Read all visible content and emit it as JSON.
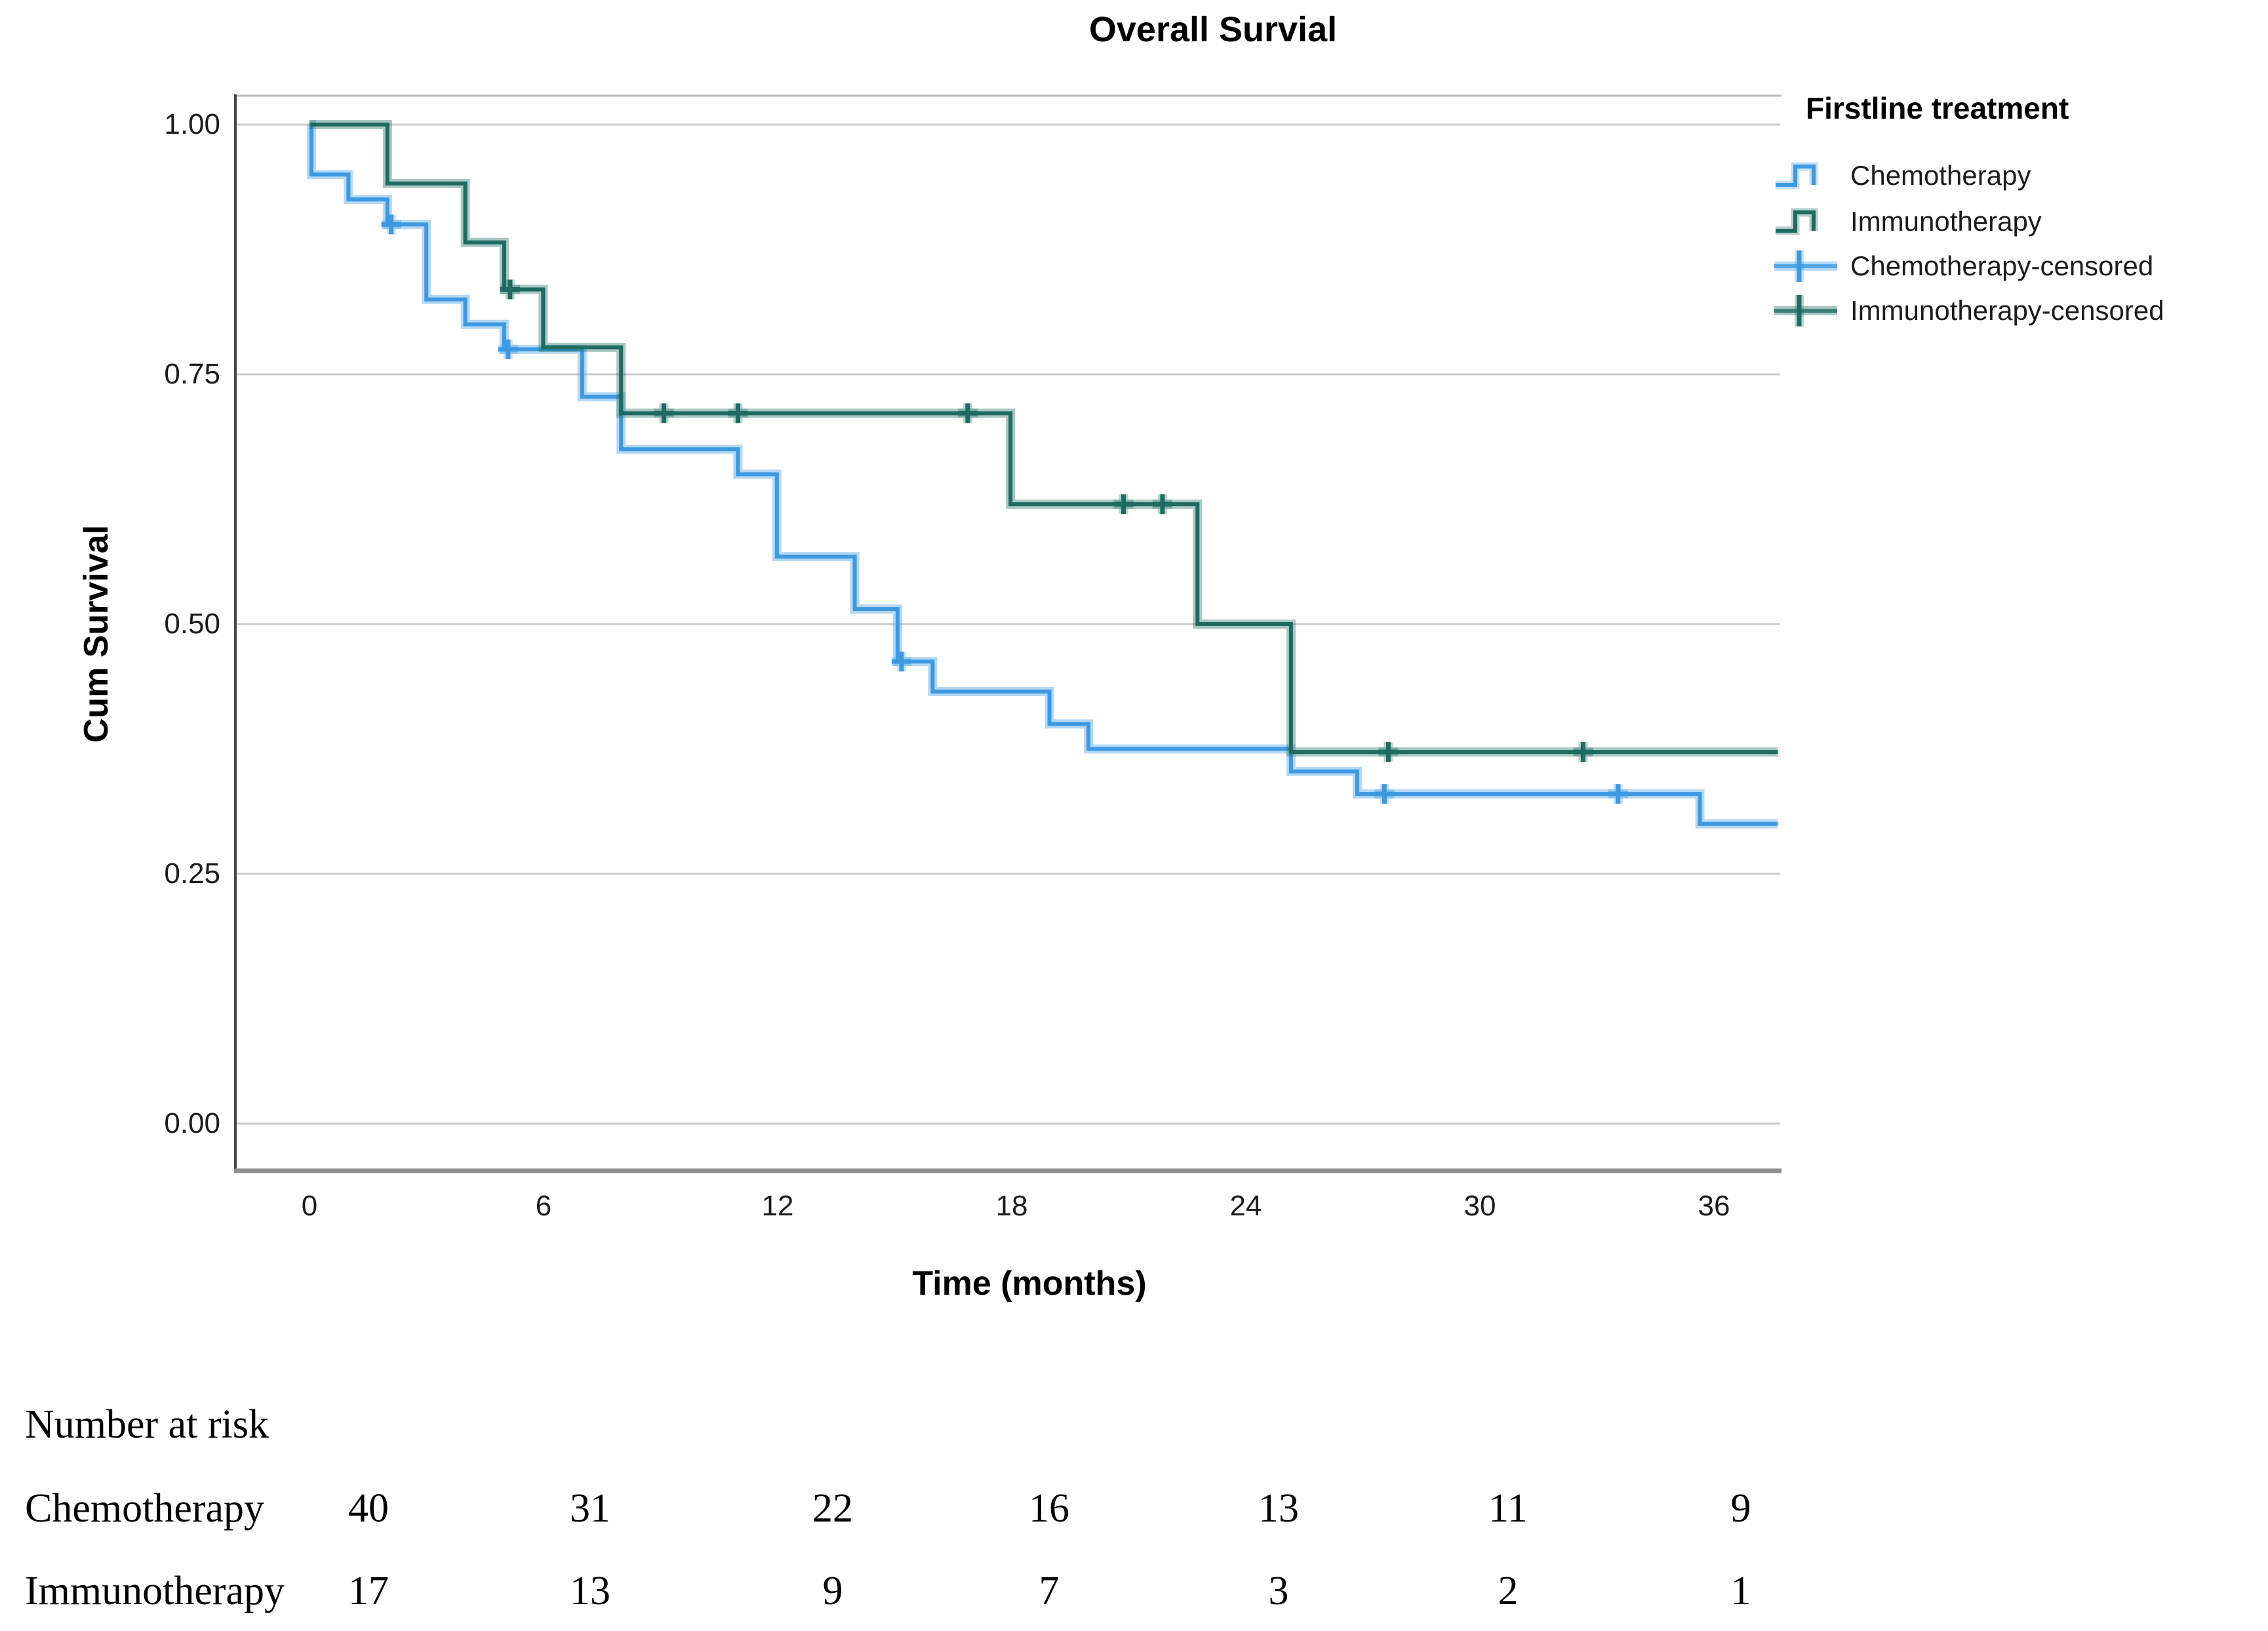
{
  "title": "Overall Survial",
  "axes": {
    "y": {
      "label": "Cum Survival",
      "ticks": [
        "1.00",
        "0.75",
        "0.50",
        "0.25",
        "0.00"
      ]
    },
    "x": {
      "label": "Time (months)",
      "ticks": [
        "0",
        "6",
        "12",
        "18",
        "24",
        "30",
        "36"
      ]
    }
  },
  "legend": {
    "title": "Firstline treatment",
    "entries": [
      {
        "label": "Chemotherapy",
        "color": "#3d9ae2",
        "type": "step-line"
      },
      {
        "label": "Immunotherapy",
        "color": "#1e6b62",
        "type": "step-line"
      },
      {
        "label": "Chemotherapy-censored",
        "color": "#3d9ae2",
        "type": "censored-marker"
      },
      {
        "label": "Immunotherapy-censored",
        "color": "#1e6b62",
        "type": "censored-marker"
      }
    ]
  },
  "chart_data": {
    "type": "line",
    "subtype": "kaplan-meier-step",
    "title": "Overall Survial",
    "xlabel": "Time (months)",
    "ylabel": "Cum Survival",
    "xlim": [
      0,
      37.7
    ],
    "ylim": [
      0,
      1.04
    ],
    "x_ticks": [
      0,
      6,
      12,
      18,
      24,
      30,
      36
    ],
    "y_ticks": [
      0.0,
      0.25,
      0.5,
      0.75,
      1.0
    ],
    "grid": "horizontal",
    "legend_position": "right",
    "series": [
      {
        "name": "Chemotherapy",
        "color": "#3d9ae2",
        "steps": [
          [
            0,
            1.0
          ],
          [
            0.05,
            0.95
          ],
          [
            1,
            0.925
          ],
          [
            2,
            0.9
          ],
          [
            3,
            0.825
          ],
          [
            4,
            0.8
          ],
          [
            5,
            0.775
          ],
          [
            7,
            0.7275
          ],
          [
            8,
            0.675
          ],
          [
            11,
            0.65
          ],
          [
            12,
            0.5675
          ],
          [
            14,
            0.515
          ],
          [
            15.1,
            0.4625
          ],
          [
            16,
            0.4325
          ],
          [
            19,
            0.4
          ],
          [
            20,
            0.375
          ],
          [
            25.2,
            0.3525
          ],
          [
            26.9,
            0.33
          ],
          [
            35.7,
            0.3
          ]
        ],
        "end": 37.7,
        "censored": [
          [
            2.1,
            0.9
          ],
          [
            5.1,
            0.775
          ],
          [
            15.2,
            0.4625
          ],
          [
            27.6,
            0.33
          ],
          [
            33.6,
            0.33
          ]
        ]
      },
      {
        "name": "Immunotherapy",
        "color": "#1e6b62",
        "steps": [
          [
            0,
            1.0
          ],
          [
            2,
            0.941
          ],
          [
            4,
            0.882
          ],
          [
            5,
            0.835
          ],
          [
            6,
            0.777
          ],
          [
            8,
            0.711
          ],
          [
            18,
            0.62
          ],
          [
            22.8,
            0.5
          ],
          [
            25.2,
            0.372
          ]
        ],
        "end": 37.7,
        "censored": [
          [
            5.15,
            0.835
          ],
          [
            9.1,
            0.711
          ],
          [
            11,
            0.711
          ],
          [
            16.9,
            0.711
          ],
          [
            20.9,
            0.62
          ],
          [
            21.9,
            0.62
          ],
          [
            27.7,
            0.372
          ],
          [
            32.7,
            0.372
          ]
        ]
      }
    ]
  },
  "risk_table": {
    "title": "Number at risk",
    "rows": [
      {
        "label": "Chemotherapy",
        "values": [
          "40",
          "31",
          "22",
          "16",
          "13",
          "11",
          "9"
        ]
      },
      {
        "label": "Immunotherapy",
        "values": [
          "17",
          "13",
          "9",
          "7",
          "3",
          "2",
          "1"
        ]
      }
    ]
  }
}
